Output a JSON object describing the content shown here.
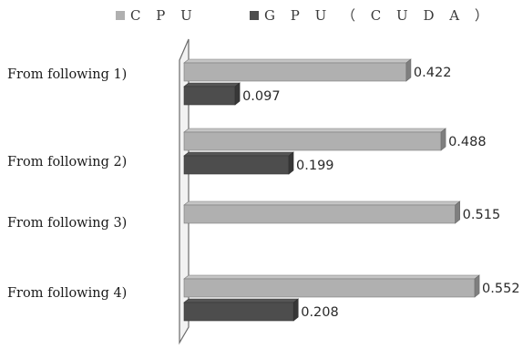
{
  "chart_data": {
    "type": "bar",
    "orientation": "horizontal",
    "style": "3d",
    "categories": [
      "From following 1)",
      "From following 2)",
      "From following 3)",
      "From following 4)"
    ],
    "series": [
      {
        "name": "CPU",
        "values": [
          0.422,
          0.488,
          0.515,
          0.552
        ],
        "color": "#b0b0b0"
      },
      {
        "name": "GPU（CUDA）",
        "values": [
          0.097,
          0.199,
          null,
          0.208
        ],
        "color": "#4d4d4d"
      }
    ],
    "data_labels": {
      "CPU": [
        "0.422",
        "0.488",
        "0.515",
        "0.552"
      ],
      "GPU（CUDA）": [
        "0.097",
        "0.199",
        "",
        "0.208"
      ]
    },
    "xlim": [
      0,
      0.6
    ],
    "grid": false,
    "legend_position": "top"
  }
}
